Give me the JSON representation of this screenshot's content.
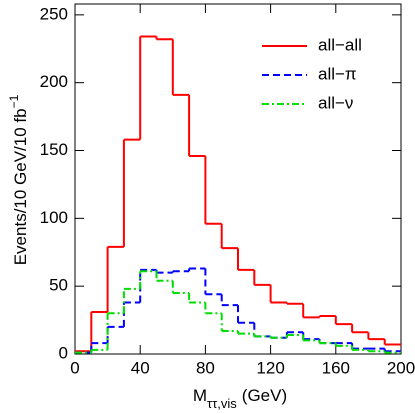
{
  "chart_data": {
    "type": "histogram",
    "xlabel": "M",
    "xlabel_sub": "ττ,vis",
    "xlabel_unit": "(GeV)",
    "ylabel": "Events/10 GeV/10 fb",
    "ylabel_sup": "−1",
    "bins": [
      0,
      10,
      20,
      30,
      40,
      50,
      60,
      70,
      80,
      90,
      100,
      110,
      120,
      130,
      140,
      150,
      160,
      170,
      180,
      190,
      200
    ],
    "series": [
      {
        "name": "all−all",
        "color": "#ff0000",
        "dash": "none",
        "values": [
          2,
          31,
          79,
          158,
          234,
          232,
          191,
          146,
          96,
          78,
          62,
          51,
          38,
          37,
          27,
          28,
          22,
          16,
          11,
          7
        ]
      },
      {
        "name": "all−π",
        "color": "#0000ff",
        "dash": "7 4",
        "values": [
          1,
          8,
          20,
          38,
          62,
          60,
          61,
          63,
          44,
          36,
          23,
          13,
          12,
          16,
          11,
          8,
          8,
          4,
          4,
          2
        ]
      },
      {
        "name": "all−ν",
        "color": "#00dd00",
        "dash": "7 3 2 3",
        "values": [
          1,
          3,
          30,
          48,
          61,
          54,
          45,
          38,
          30,
          17,
          15,
          13,
          12,
          14,
          10,
          8,
          6,
          3,
          2,
          1
        ]
      }
    ],
    "xlim": [
      0,
      200
    ],
    "xticks": [
      0,
      40,
      80,
      120,
      160,
      200
    ],
    "ylim": [
      0,
      258
    ],
    "yticks": [
      0,
      50,
      100,
      150,
      200,
      250
    ],
    "legend": "upper right"
  }
}
